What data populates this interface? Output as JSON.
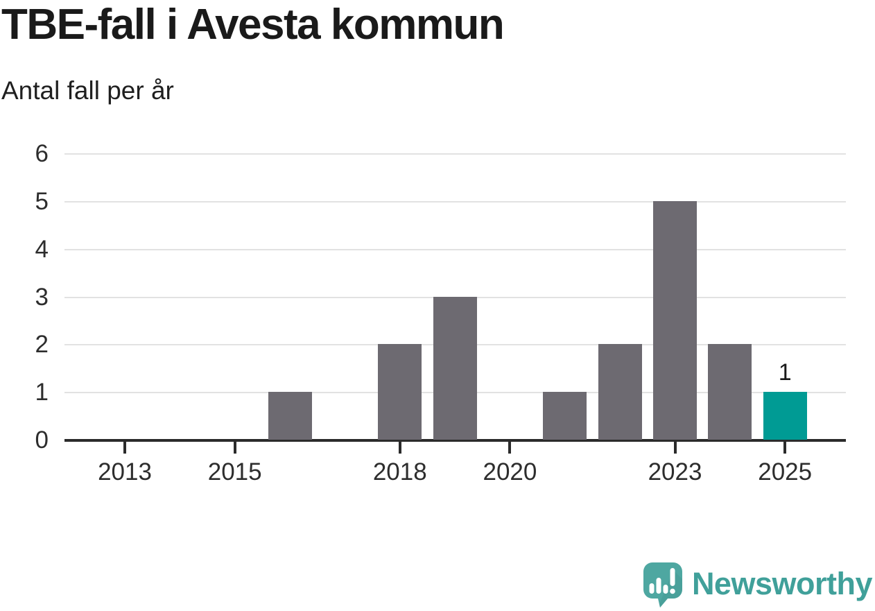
{
  "header": {
    "title": "TBE-fall i Avesta kommun",
    "subtitle": "Antal fall per år"
  },
  "chart_data": {
    "type": "bar",
    "title": "TBE-fall i Avesta kommun",
    "subtitle": "Antal fall per år",
    "categories": [
      2013,
      2014,
      2015,
      2016,
      2017,
      2018,
      2019,
      2020,
      2021,
      2022,
      2023,
      2024,
      2025
    ],
    "values": [
      0,
      0,
      0,
      1,
      0,
      2,
      3,
      0,
      1,
      2,
      5,
      2,
      1
    ],
    "ylabel": "Antal fall per år",
    "xlabel": "",
    "ylim": [
      0,
      6
    ],
    "yticks": [
      0,
      1,
      2,
      3,
      4,
      5,
      6
    ],
    "xticks": [
      2013,
      2015,
      2018,
      2020,
      2023,
      2025
    ],
    "grid": "horizontal",
    "legend": "none",
    "bar_color": "#6d6a71",
    "highlight_color": "#009b94",
    "highlight_category": 2025,
    "annotations": [
      {
        "category": 2025,
        "text": "1"
      }
    ]
  },
  "footer": {
    "brand": "Newsworthy",
    "brand_color": "#40a09a",
    "logo_icon": "newsworthy-speech-bubble-bar-chart-icon",
    "logo_colors": {
      "bubble": "#4ea7a1",
      "shade": "#459a95",
      "glyph": "#ffffff"
    }
  }
}
